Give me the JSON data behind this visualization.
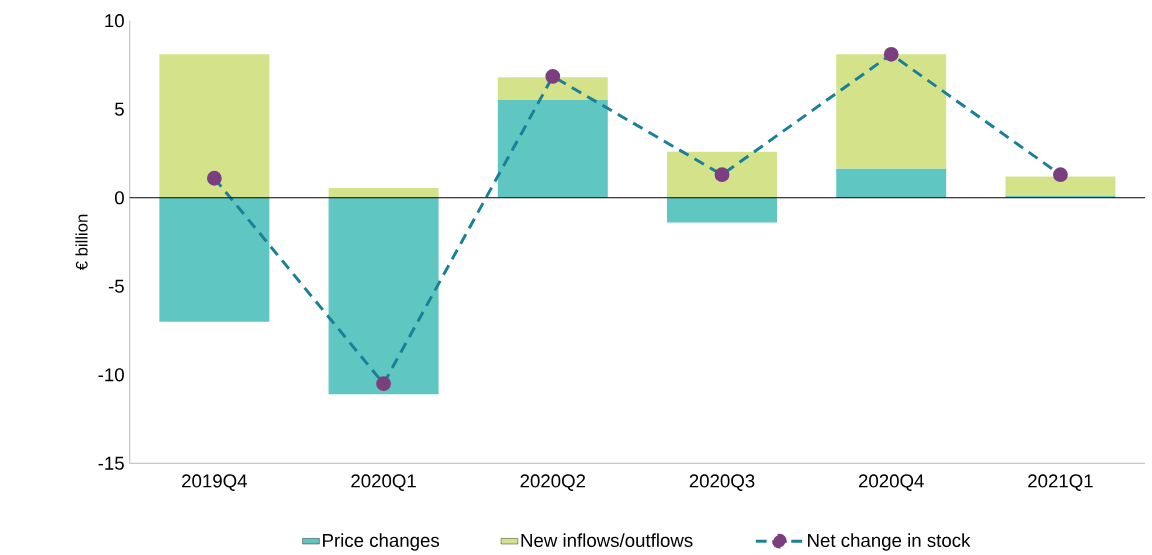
{
  "chart_data": {
    "type": "bar",
    "stacked": true,
    "ylabel": "€ billion",
    "categories": [
      "2019Q4",
      "2020Q1",
      "2020Q2",
      "2020Q3",
      "2020Q4",
      "2021Q1"
    ],
    "series": [
      {
        "name": "Price changes",
        "color": "#5fc6c2",
        "values": [
          -7.0,
          -11.1,
          5.55,
          -1.4,
          1.65,
          0.1
        ]
      },
      {
        "name": "New inflows/outflows",
        "color": "#d4e38a",
        "values": [
          8.1,
          0.55,
          1.25,
          2.6,
          6.45,
          1.1
        ]
      },
      {
        "name": "Net change in stock",
        "type": "line",
        "color": "#1a8099",
        "colors": [
          "#7b3f7f",
          "#7b3f7f",
          "#7b3f7f",
          "#7b3f7f",
          "#7b3f7f",
          "#7b3f7f"
        ],
        "marker": "circle",
        "line_style": "dashed",
        "values": [
          1.1,
          -10.5,
          6.85,
          1.3,
          8.1,
          1.3
        ]
      }
    ],
    "ylim": [
      -15,
      10
    ],
    "yticks": [
      -15,
      -10,
      -5,
      0,
      5,
      10
    ],
    "ref_lines": [
      {
        "axis": "y",
        "value": 0,
        "color": "#000000"
      }
    ],
    "grid": false,
    "legend": "bottom"
  }
}
